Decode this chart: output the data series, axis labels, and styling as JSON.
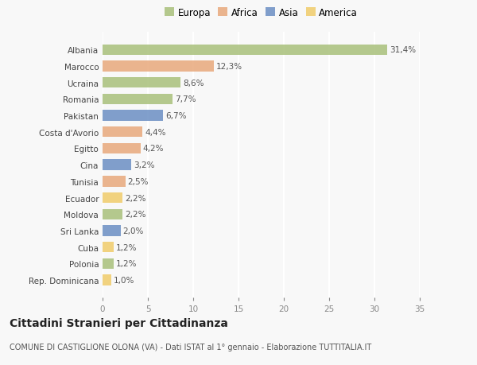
{
  "categories": [
    "Albania",
    "Marocco",
    "Ucraina",
    "Romania",
    "Pakistan",
    "Costa d'Avorio",
    "Egitto",
    "Cina",
    "Tunisia",
    "Ecuador",
    "Moldova",
    "Sri Lanka",
    "Cuba",
    "Polonia",
    "Rep. Dominicana"
  ],
  "values": [
    31.4,
    12.3,
    8.6,
    7.7,
    6.7,
    4.4,
    4.2,
    3.2,
    2.5,
    2.2,
    2.2,
    2.0,
    1.2,
    1.2,
    1.0
  ],
  "labels": [
    "31,4%",
    "12,3%",
    "8,6%",
    "7,7%",
    "6,7%",
    "4,4%",
    "4,2%",
    "3,2%",
    "2,5%",
    "2,2%",
    "2,2%",
    "2,0%",
    "1,2%",
    "1,2%",
    "1,0%"
  ],
  "continents": [
    "Europa",
    "Africa",
    "Europa",
    "Europa",
    "Asia",
    "Africa",
    "Africa",
    "Asia",
    "Africa",
    "America",
    "Europa",
    "Asia",
    "America",
    "Europa",
    "America"
  ],
  "colors": {
    "Europa": "#a8c07a",
    "Africa": "#e8a87c",
    "Asia": "#6b8fc4",
    "America": "#f0cc6a"
  },
  "xlim": [
    0,
    35
  ],
  "xticks": [
    0,
    5,
    10,
    15,
    20,
    25,
    30,
    35
  ],
  "title": "Cittadini Stranieri per Cittadinanza",
  "subtitle": "COMUNE DI CASTIGLIONE OLONA (VA) - Dati ISTAT al 1° gennaio - Elaborazione TUTTITALIA.IT",
  "background_color": "#f8f8f8",
  "bar_alpha": 0.85,
  "gridcolor": "#ffffff",
  "label_fontsize": 7.5,
  "tick_fontsize": 7.5,
  "title_fontsize": 10,
  "subtitle_fontsize": 7,
  "legend_fontsize": 8.5
}
